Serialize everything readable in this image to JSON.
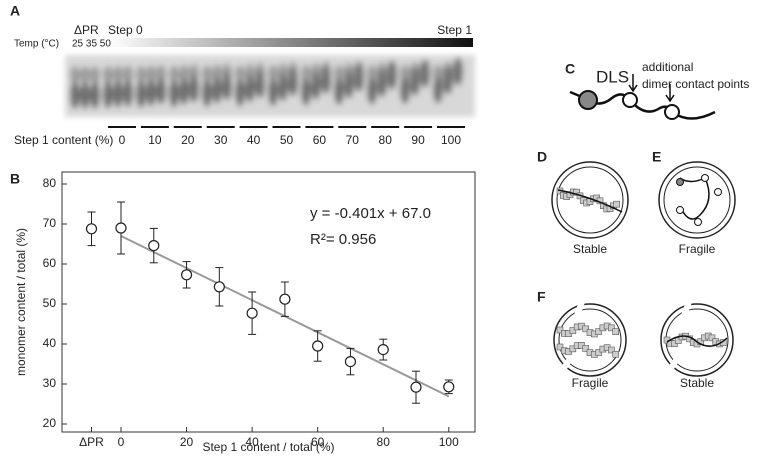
{
  "panel_a": {
    "label": "A",
    "delta_pr": "ΔPR",
    "step0": "Step 0",
    "step1": "Step 1",
    "temp_label": "Temp (°C)",
    "temps": "25 35 50",
    "content_label": "Step 1 content (%)",
    "lanes": [
      "0",
      "10",
      "20",
      "30",
      "40",
      "50",
      "60",
      "70",
      "80",
      "90",
      "100"
    ]
  },
  "chart_data": {
    "type": "scatter",
    "panel": "B",
    "x": [
      -9,
      0,
      10,
      20,
      30,
      40,
      50,
      60,
      70,
      80,
      90,
      100
    ],
    "series": [
      {
        "color": "#222222",
        "values": [
          68.8,
          69,
          64.6,
          57.3,
          54.3,
          47.7,
          51.2,
          39.5,
          35.6,
          38.6,
          29.2,
          29.3
        ],
        "errors": [
          4.2,
          6.5,
          4.3,
          3.3,
          4.8,
          5.3,
          4.3,
          3.8,
          3.3,
          2.6,
          4,
          1.7
        ]
      }
    ],
    "fit": {
      "slope": -0.401,
      "intercept": 67.0,
      "color": "#999999"
    },
    "equation": "y = -0.401x + 67.0",
    "r2": "R²= 0.956",
    "xlabel": "Step 1 content / total (%)",
    "ylabel": "monomer content / total (%)",
    "xlim": [
      -18,
      108
    ],
    "ylim": [
      18,
      83
    ],
    "xticks": [
      {
        "value": -9,
        "label": "ΔPR"
      },
      0,
      20,
      40,
      60,
      80,
      100
    ],
    "yticks": [
      20,
      30,
      40,
      50,
      60,
      70,
      80
    ]
  },
  "panel_c": {
    "label": "C",
    "dls": "DLS",
    "note_1": "additional",
    "note_2": "dimer contact points"
  },
  "panel_d": {
    "label": "D",
    "caption": "Stable"
  },
  "panel_e": {
    "label": "E",
    "caption": "Fragile"
  },
  "panel_f": {
    "label": "F",
    "caption_left": "Fragile",
    "caption_right": "Stable"
  }
}
